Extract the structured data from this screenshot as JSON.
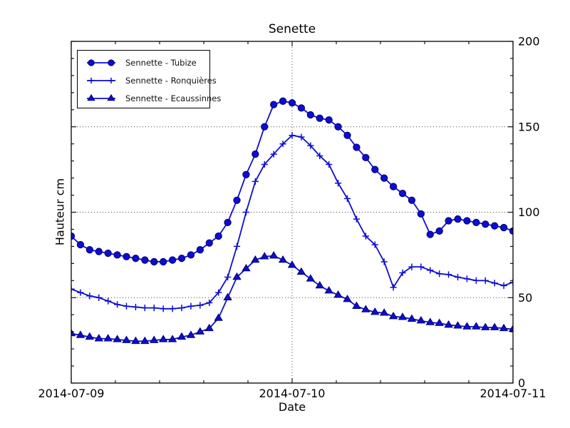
{
  "chart_data": {
    "type": "line",
    "title": "Senette",
    "xlabel": "Date",
    "ylabel": "Hauteur cm",
    "ylim": [
      0,
      200
    ],
    "yticks": [
      0,
      50,
      100,
      150,
      200
    ],
    "ygrid_values": [
      50,
      100,
      150
    ],
    "y_minor_step": 10,
    "xtick_labels": [
      "2014-07-09",
      "2014-07-10",
      "2014-07-11"
    ],
    "x_range_hours": [
      0,
      48
    ],
    "x_major_step_hours": 24,
    "x_minor_subdivisions": 5,
    "xgrid_hours": [
      24
    ],
    "grid": true,
    "grid_style": "dotted",
    "legend_position": "upper left",
    "line_color": "#0d0dd2",
    "marker_edge_color": "#00005f",
    "axis_color": "#000000",
    "x_unit": "hours since 2014-07-09 00:00",
    "series": [
      {
        "name": "Sennette - Tubize",
        "marker": "circle",
        "values": [
          86,
          81,
          78,
          77,
          76,
          75,
          74,
          73,
          72,
          71,
          71,
          72,
          73,
          75,
          78,
          82,
          86,
          94,
          107,
          122,
          134,
          150,
          163,
          165,
          164,
          161,
          157,
          155,
          154,
          150,
          145,
          138,
          132,
          125,
          120,
          115,
          111,
          107,
          99,
          87,
          89,
          95,
          96,
          95,
          94,
          93,
          92,
          91,
          89
        ]
      },
      {
        "name": "Sennette - Ronquières",
        "marker": "plus",
        "values": [
          55,
          53,
          51,
          50,
          48,
          46,
          45,
          44.5,
          44,
          44,
          43.5,
          43.5,
          44,
          45,
          45.5,
          47,
          53,
          62,
          80,
          100,
          118,
          128,
          134,
          140,
          145,
          144,
          139,
          133,
          128,
          117,
          108,
          96,
          86,
          81,
          71,
          56,
          64.5,
          68,
          68,
          66,
          64,
          63.5,
          62,
          61,
          60,
          60,
          58.5,
          57,
          59
        ]
      },
      {
        "name": "Sennette - Ecaussinnes",
        "marker": "triangle",
        "values": [
          29,
          28,
          27,
          26,
          26,
          25.5,
          25,
          24.5,
          24.5,
          25,
          25.5,
          25.5,
          27,
          28,
          30,
          32,
          38,
          50,
          62,
          67,
          72,
          74,
          74.5,
          72,
          69,
          65,
          61,
          57,
          54,
          51.5,
          49,
          45,
          43,
          41.5,
          41,
          39,
          38.5,
          37.5,
          36.5,
          35.5,
          35,
          34,
          33.5,
          33,
          33,
          32.5,
          32.5,
          32,
          31.5
        ]
      }
    ]
  }
}
